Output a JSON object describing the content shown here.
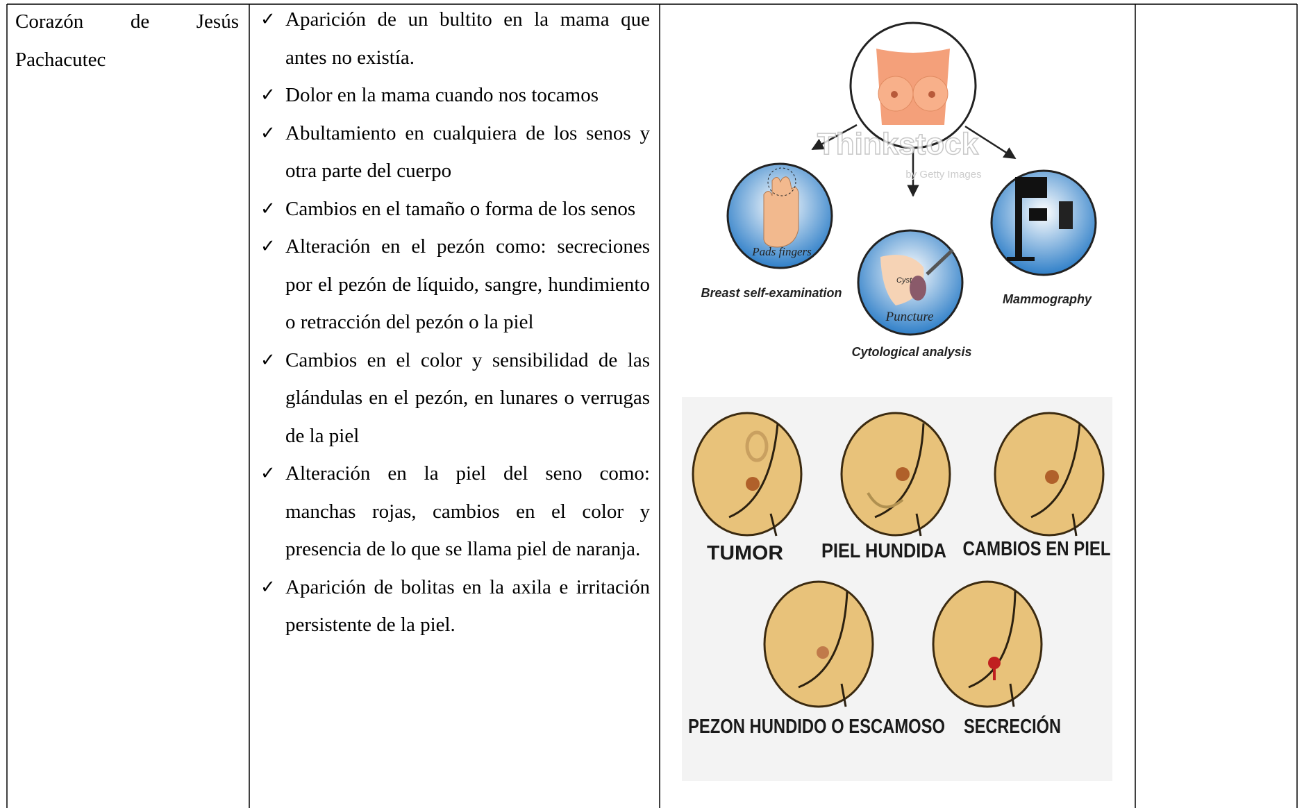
{
  "table": {
    "rows": [
      {
        "location": "Corazón de Jesús Pachacutec",
        "signs": [
          "Aparición de un bultito en la mama que antes no existía.",
          "Dolor en la mama cuando nos tocamos",
          "Abultamiento en cualquiera de los senos y otra parte del cuerpo",
          "Cambios en el tamaño o forma de los senos",
          "Alteración en el pezón como: secreciones por el pezón de líquido, sangre, hundimiento o retracción del pezón o la piel",
          "Cambios en el color y sensibilidad de las glándulas en el pezón, en lunares o verrugas de la piel",
          "Alteración en la piel del seno como: manchas rojas, cambios en el color y presencia de lo que se llama piel de naranja.",
          "Aparición de bolitas en la axila e irritación persistente de la piel."
        ],
        "figures": {
          "exam_diagram": {
            "methods": [
              {
                "label": "Breast self-examination",
                "inner": [
                  "Pads fingers"
                ]
              },
              {
                "label": "Cytological analysis",
                "inner": [
                  "Cyst",
                  "Puncture"
                ]
              },
              {
                "label": "Mammography"
              }
            ],
            "watermark": {
              "brand": "Thinkstock",
              "sub": "by Getty Images"
            }
          },
          "warning_signs": {
            "labels": [
              "TUMOR",
              "PIEL HUNDIDA",
              "CAMBIOS EN PIEL",
              "PEZON HUNDIDO O ESCAMOSO",
              "SECRECIÓN"
            ]
          }
        }
      }
    ]
  }
}
